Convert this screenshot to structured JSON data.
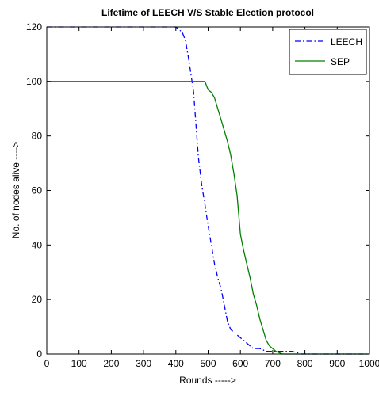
{
  "chart_data": {
    "type": "line",
    "title": "Lifetime of LEECH V/S Stable Election protocol",
    "xlabel": "Rounds ----->",
    "ylabel": "No. of nodes alive ---->",
    "xlim": [
      0,
      1000
    ],
    "ylim": [
      0,
      120
    ],
    "x_ticks": [
      0,
      100,
      200,
      300,
      400,
      500,
      600,
      700,
      800,
      900,
      1000
    ],
    "y_ticks": [
      0,
      20,
      40,
      60,
      80,
      100,
      120
    ],
    "x_tick_labels": [
      "0",
      "100",
      "200",
      "300",
      "400",
      "500",
      "600",
      "700",
      "800",
      "900",
      "1000"
    ],
    "y_tick_labels": [
      "0",
      "20",
      "40",
      "60",
      "80",
      "100",
      "120"
    ],
    "grid": false,
    "legend_position": "top-right",
    "series": [
      {
        "name": "LEECH",
        "color": "#0000ff",
        "line_style": "dash-dot",
        "points": [
          [
            0,
            120
          ],
          [
            400,
            120
          ],
          [
            410,
            119
          ],
          [
            420,
            118
          ],
          [
            430,
            115
          ],
          [
            440,
            108
          ],
          [
            450,
            100
          ],
          [
            455,
            96
          ],
          [
            460,
            88
          ],
          [
            470,
            72
          ],
          [
            480,
            62
          ],
          [
            490,
            55
          ],
          [
            500,
            47
          ],
          [
            510,
            40
          ],
          [
            520,
            33
          ],
          [
            530,
            28
          ],
          [
            540,
            24
          ],
          [
            550,
            18
          ],
          [
            560,
            12
          ],
          [
            570,
            9
          ],
          [
            580,
            8
          ],
          [
            590,
            7
          ],
          [
            600,
            6
          ],
          [
            610,
            5
          ],
          [
            620,
            4
          ],
          [
            630,
            3
          ],
          [
            640,
            2
          ],
          [
            660,
            2
          ],
          [
            680,
            1
          ],
          [
            700,
            1
          ],
          [
            730,
            1
          ],
          [
            760,
            1
          ],
          [
            790,
            0
          ],
          [
            1000,
            0
          ]
        ]
      },
      {
        "name": "SEP",
        "color": "#008000",
        "line_style": "solid",
        "points": [
          [
            0,
            100
          ],
          [
            490,
            100
          ],
          [
            500,
            97
          ],
          [
            510,
            96
          ],
          [
            520,
            94
          ],
          [
            530,
            90
          ],
          [
            540,
            86
          ],
          [
            550,
            82
          ],
          [
            560,
            78
          ],
          [
            570,
            73
          ],
          [
            580,
            66
          ],
          [
            590,
            58
          ],
          [
            600,
            44
          ],
          [
            610,
            38
          ],
          [
            620,
            33
          ],
          [
            630,
            28
          ],
          [
            640,
            22
          ],
          [
            650,
            18
          ],
          [
            660,
            13
          ],
          [
            670,
            9
          ],
          [
            680,
            5
          ],
          [
            690,
            3
          ],
          [
            700,
            2
          ],
          [
            710,
            1
          ],
          [
            730,
            0
          ],
          [
            1000,
            0
          ]
        ]
      }
    ]
  }
}
